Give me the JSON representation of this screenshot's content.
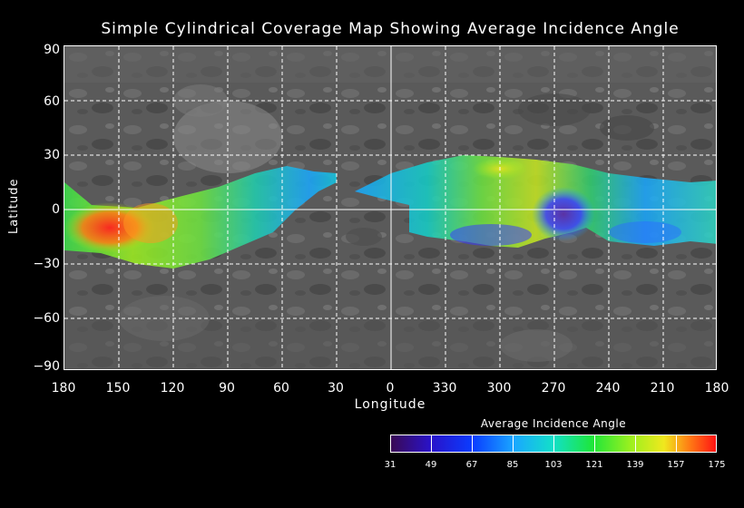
{
  "title": "Simple Cylindrical Coverage Map Showing Average Incidence Angle",
  "axes": {
    "ylabel": "Latitude",
    "xlabel": "Longitude",
    "y_ticks": [
      "90",
      "60",
      "30",
      "0",
      "−30",
      "−60",
      "−90"
    ],
    "x_ticks": [
      "180",
      "150",
      "120",
      "90",
      "60",
      "30",
      "0",
      "330",
      "300",
      "270",
      "240",
      "210",
      "180"
    ]
  },
  "colorbar": {
    "title": "Average Incidence Angle",
    "labels": [
      "31",
      "49",
      "67",
      "85",
      "103",
      "121",
      "139",
      "157",
      "175"
    ],
    "colors": [
      "#3a0a54",
      "#2a12c8",
      "#0a3cff",
      "#1aa8ff",
      "#12e0c8",
      "#1ee63a",
      "#9ef01e",
      "#f0e81e",
      "#ff7a14",
      "#ff1414"
    ]
  },
  "colors": {
    "background": "#000000",
    "basemap": "#5c5c5c",
    "grid": "#ffffff"
  }
}
